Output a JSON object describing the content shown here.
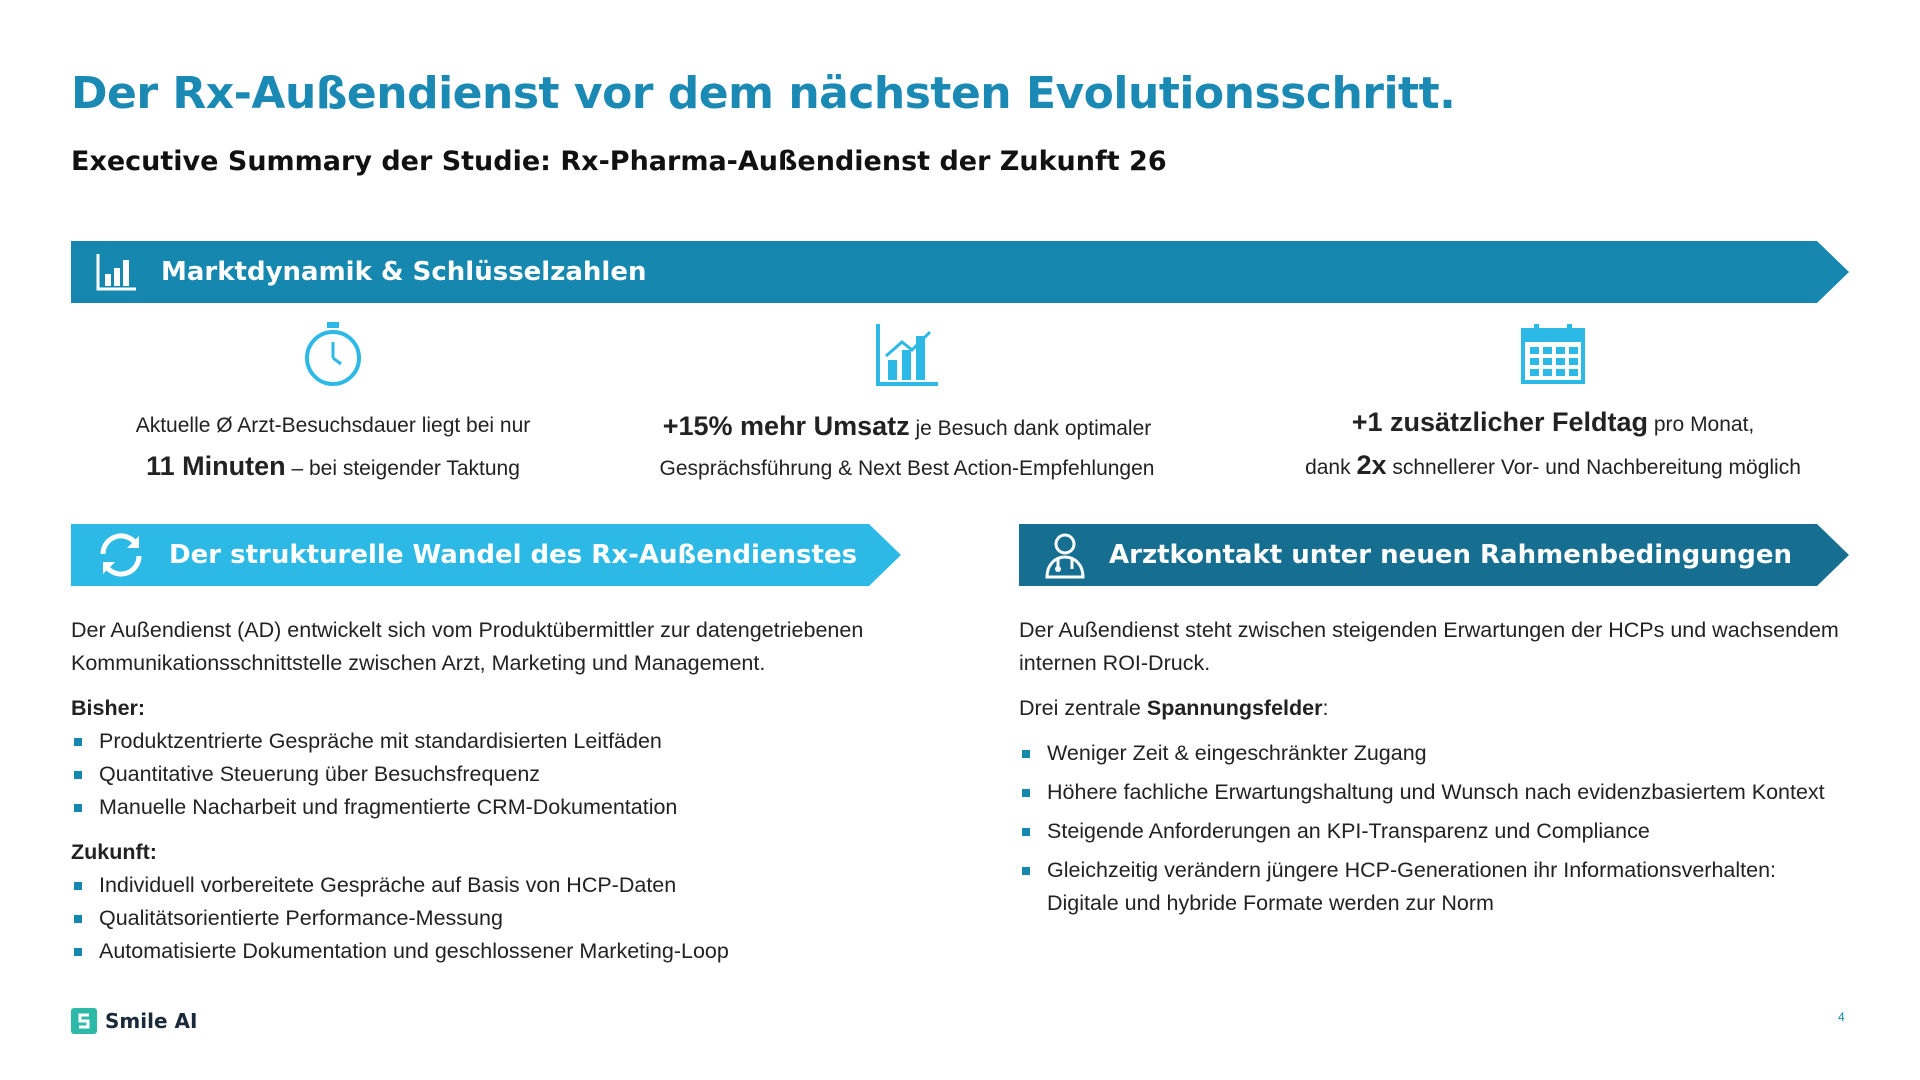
{
  "header": {
    "title": "Der Rx-Außendienst vor dem nächsten Evolutionsschritt.",
    "subtitle": "Executive Summary der Studie: Rx-Pharma-Außendienst der Zukunft 26"
  },
  "market": {
    "heading": "Marktdynamik & Schlüsselzahlen",
    "facts": [
      {
        "lines": [
          [
            "Aktuelle Ø Arzt-Besuchsdauer liegt bei nur"
          ],
          [
            "11 Minuten",
            " – bei steigender Taktung"
          ]
        ]
      },
      {
        "lines": [
          [
            "+15% mehr Umsatz",
            " je Besuch dank optimaler"
          ],
          [
            "Gesprächsführung & Next Best Action-Empfehlungen"
          ]
        ]
      },
      {
        "lines": [
          [
            "+1 zusätzlicher Feldtag",
            " pro Monat,"
          ],
          [
            "dank ",
            "2x",
            " schnellerer Vor- und Nachbereitung möglich"
          ]
        ]
      }
    ]
  },
  "left": {
    "heading": "Der strukturelle Wandel des Rx-Außendienstes",
    "intro": "Der Außendienst (AD) entwickelt sich vom Produktübermittler zur datengetriebenen Kommunikationsschnittstelle zwischen Arzt, Marketing und Management.",
    "groups": [
      {
        "label": "Bisher:",
        "items": [
          "Produktzentrierte Gespräche mit standardisierten Leitfäden",
          "Quantitative Steuerung über Besuchsfrequenz",
          "Manuelle Nacharbeit und fragmentierte CRM-Dokumentation"
        ]
      },
      {
        "label": "Zukunft:",
        "items": [
          "Individuell vorbereitete Gespräche auf Basis von HCP-Daten",
          "Qualitätsorientierte Performance-Messung",
          "Automatisierte Dokumentation und geschlossener Marketing-Loop"
        ]
      }
    ]
  },
  "right": {
    "heading": "Arztkontakt unter neuen Rahmenbedingungen",
    "intro": "Der Außendienst steht zwischen steigenden Erwartungen der HCPs und wachsendem internen ROI-Druck.",
    "lead": [
      "Drei zentrale ",
      "Spannungsfelder",
      ":"
    ],
    "items": [
      "Weniger Zeit & eingeschränkter Zugang",
      "Höhere fachliche Erwartungshaltung und Wunsch nach evidenzbasiertem Kontext",
      "Steigende Anforderungen an KPI-Transparenz und Compliance",
      "Gleichzeitig verändern jüngere HCP-Generationen ihr Informationsverhalten: Digitale und hybride Formate werden zur Norm"
    ]
  },
  "footer": {
    "brand": "Smile AI",
    "page": "4"
  }
}
